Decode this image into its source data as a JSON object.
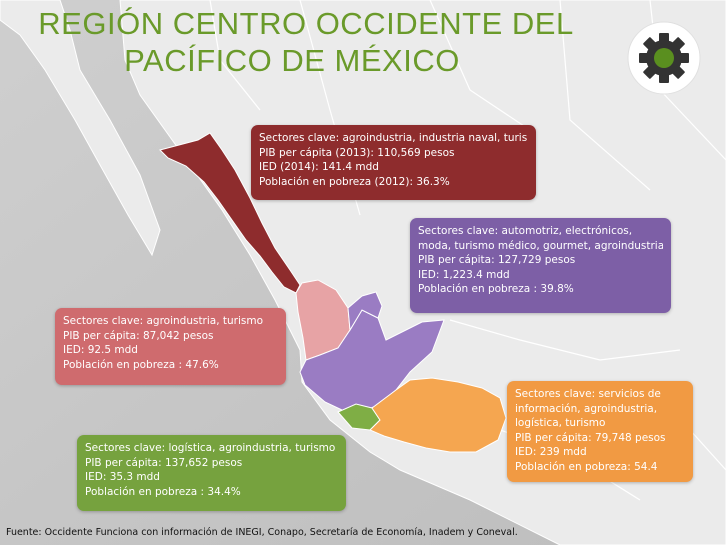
{
  "title": {
    "line1": "REGIÓN CENTRO OCCIDENTE DEL",
    "line2": "PACÍFICO DE MÉXICO"
  },
  "icon": {
    "name": "gear-icon",
    "color": "#5a8f1f"
  },
  "colors": {
    "sinaloa": "#8e2c2d",
    "jalisco": "#7d5fa6",
    "nayarit": "#cf6b6e",
    "michoacan": "#f19a43",
    "colima": "#76a23e",
    "title": "#6a9a2a"
  },
  "regions": {
    "sinaloa": {
      "sectores": "Sectores clave: agroindustria, industria naval, turismo",
      "pib": "PIB per cápita (2013):  110,569 pesos",
      "ied": "IED (2014):  141.4 mdd",
      "pobreza": "Población en pobreza (2012): 36.3%"
    },
    "jalisco": {
      "sectores1": "Sectores clave:  automotriz, electrónicos,",
      "sectores2": "moda, turismo médico, gourmet, agroindustria",
      "pib": "PIB per cápita: 127,729 pesos",
      "ied": "IED: 1,223.4 mdd",
      "pobreza": "Población en pobreza : 39.8%"
    },
    "nayarit": {
      "sectores": "Sectores clave: agroindustria, turismo",
      "pib": "PIB per cápita: 87,042 pesos",
      "ied": "IED: 92.5 mdd",
      "pobreza": "Población en pobreza : 47.6%"
    },
    "michoacan": {
      "sectores1": "Sectores clave:  servicios de",
      "sectores2": "información, agroindustria,",
      "sectores3": "logística, turismo",
      "pib": "PIB per cápita:  79,748 pesos",
      "ied": "IED: 239 mdd",
      "pobreza": "Población en pobreza: 54.4"
    },
    "colima": {
      "sectores": "Sectores clave: logística, agroindustria, turismo",
      "pib": "PIB per cápita: 137,652 pesos",
      "ied": "IED: 35.3 mdd",
      "pobreza": "Población en pobreza : 34.4%"
    }
  },
  "source": "Fuente: Occidente Funciona con información de INEGI, Conapo, Secretaría de Economía, Inadem y Coneval."
}
